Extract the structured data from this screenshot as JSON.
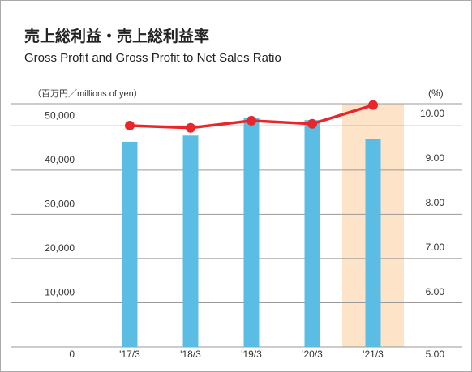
{
  "chart_data": {
    "type": "bar_line",
    "title": "売上総利益・売上総利益率",
    "subtitle": "Gross Profit and Gross Profit to Net Sales Ratio",
    "y_label": "（百万円／millions of yen）",
    "y2_label": "(%)",
    "categories": [
      "'17/3",
      "'18/3",
      "'19/3",
      "'20/3",
      "'21/3"
    ],
    "series": [
      {
        "type": "bar",
        "color": "#5bbde4",
        "values": [
          46400,
          47800,
          51800,
          51300,
          47100
        ]
      },
      {
        "type": "line",
        "axis": "y2",
        "color": "#e8262b",
        "values": [
          9.96,
          9.91,
          10.07,
          10.0,
          10.42
        ]
      }
    ],
    "highlight_color": "#fde3c8",
    "highlight_category": 4,
    "ylim": [
      0,
      55000
    ],
    "yticks": [
      0,
      {
        "value": 10000,
        "label": "10,000"
      },
      {
        "value": 20000,
        "label": "20,000"
      },
      {
        "value": 30000,
        "label": "30,000"
      },
      {
        "value": 40000,
        "label": "40,000"
      },
      {
        "value": 50000,
        "label": "50,000"
      }
    ],
    "y2lim": [
      5,
      10.45
    ],
    "y2ticks": [
      {
        "value": 5,
        "label": "5.00"
      },
      {
        "value": 6,
        "label": "6.00"
      },
      {
        "value": 7,
        "label": "7.00"
      },
      {
        "value": 8,
        "label": "8.00"
      },
      {
        "value": 9,
        "label": "9.00"
      },
      {
        "value": 10,
        "label": "10.00"
      }
    ],
    "grid": true
  }
}
